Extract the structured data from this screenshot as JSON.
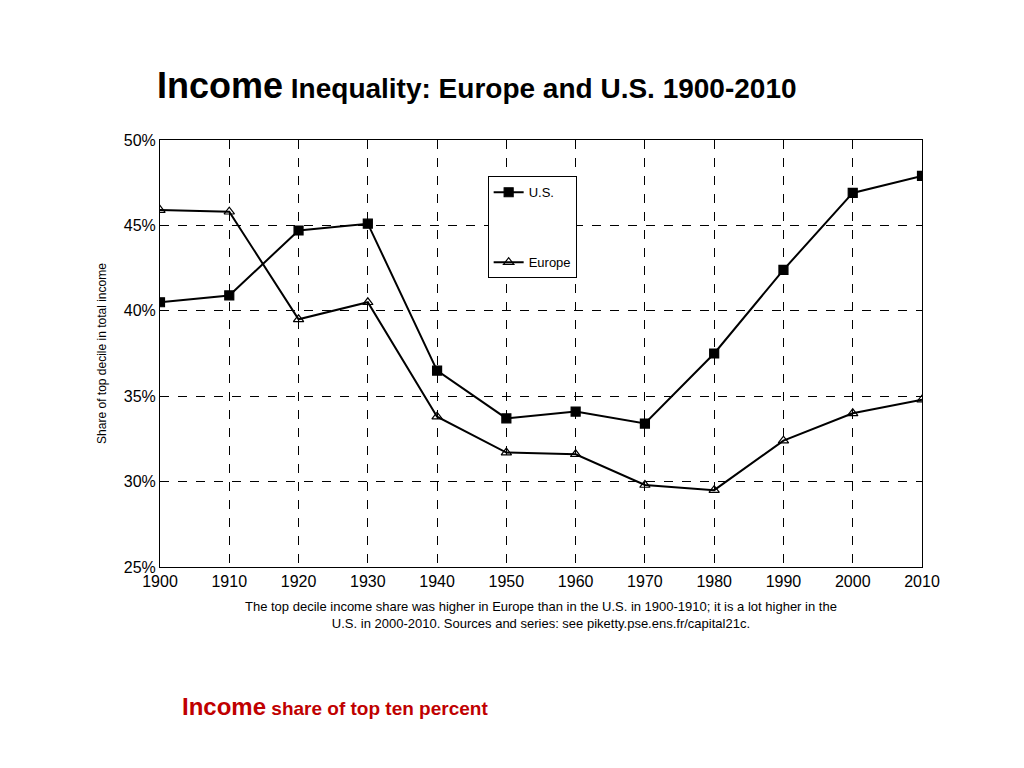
{
  "chart_data": {
    "type": "line",
    "title": "Income Inequality: Europe and U.S. 1900-2010",
    "y_label": "Share of top decile in total income",
    "annotations": [
      "The top decile income share was higher in Europe than in the U.S. in 1900-1910; it is a lot higher in the U.S. in 2000-2010. Sources and series: see piketty.pse.ens.fr/capital21c.",
      "Income share of top ten percent"
    ],
    "x": [
      1900,
      1910,
      1920,
      1930,
      1940,
      1950,
      1960,
      1970,
      1980,
      1990,
      2000,
      2010
    ],
    "series": [
      {
        "name": "U.S.",
        "color": "#000000",
        "marker": "square",
        "line_style": "solid",
        "values": [
          40.5,
          40.9,
          44.7,
          45.1,
          36.5,
          33.7,
          34.1,
          33.4,
          37.5,
          42.4,
          46.9,
          47.9
        ]
      },
      {
        "name": "Europe",
        "color": "#000000",
        "marker": "triangle-up-open",
        "line_style": "solid",
        "values": [
          45.9,
          45.8,
          39.5,
          40.5,
          33.8,
          31.7,
          31.6,
          29.8,
          29.5,
          32.4,
          34.0,
          34.8
        ]
      }
    ],
    "xlim": [
      1900,
      2010
    ],
    "xticks": [
      1900,
      1910,
      1920,
      1930,
      1940,
      1950,
      1960,
      1970,
      1980,
      1990,
      2000,
      2010
    ],
    "ylim": [
      25,
      50
    ],
    "yticks": [
      {
        "value": 25,
        "label": "25%"
      },
      {
        "value": 30,
        "label": "30%"
      },
      {
        "value": 35,
        "label": "35%"
      },
      {
        "value": 40,
        "label": "40%"
      },
      {
        "value": 45,
        "label": "45%"
      },
      {
        "value": 50,
        "label": "50%"
      }
    ],
    "grid": true,
    "legend": "top"
  }
}
